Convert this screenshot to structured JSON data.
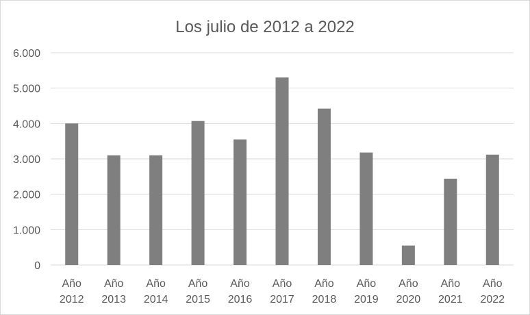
{
  "chart_data": {
    "type": "bar",
    "title": "Los julio de 2012 a 2022",
    "xlabel": "",
    "ylabel": "",
    "categories": [
      [
        "Año",
        "2012"
      ],
      [
        "Año",
        "2013"
      ],
      [
        "Año",
        "2014"
      ],
      [
        "Año",
        "2015"
      ],
      [
        "Año",
        "2016"
      ],
      [
        "Año",
        "2017"
      ],
      [
        "Año",
        "2018"
      ],
      [
        "Año",
        "2019"
      ],
      [
        "Año",
        "2020"
      ],
      [
        "Año",
        "2021"
      ],
      [
        "Año",
        "2022"
      ]
    ],
    "values": [
      4000,
      3100,
      3100,
      4070,
      3550,
      5300,
      4420,
      3180,
      550,
      2440,
      3120
    ],
    "ylim": [
      0,
      6000
    ],
    "yticks": [
      0,
      1000,
      2000,
      3000,
      4000,
      5000,
      6000
    ],
    "ytick_labels": [
      "0",
      "1.000",
      "2.000",
      "3.000",
      "4.000",
      "5.000",
      "6.000"
    ],
    "grid": true,
    "legend": "none",
    "bar_color": "#7f7f7f",
    "grid_color": "#d9d9d9"
  }
}
